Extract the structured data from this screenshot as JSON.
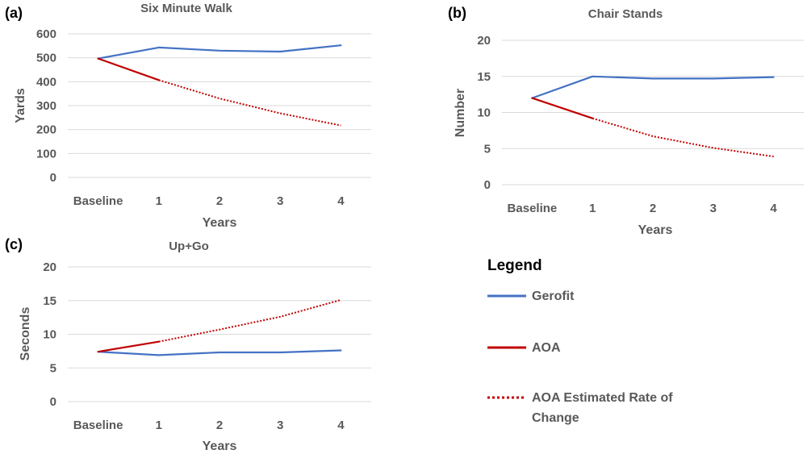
{
  "colors": {
    "gerofit": "#4472c4",
    "aoa": "#c00000"
  },
  "chart_data": [
    {
      "panel": "(a)",
      "type": "line",
      "title": "Six Minute Walk",
      "xlabel": "Years",
      "ylabel": "Yards",
      "categories": [
        "Baseline",
        "1",
        "2",
        "3",
        "4"
      ],
      "ylim": [
        0,
        600
      ],
      "yticks": [
        0,
        100,
        200,
        300,
        400,
        500,
        600
      ],
      "grid": true,
      "series": [
        {
          "name": "Gerofit",
          "values": [
            497,
            543,
            530,
            526,
            552
          ],
          "style": "solid",
          "color": "#4472c4"
        },
        {
          "name": "AOA",
          "values": [
            497,
            407,
            null,
            null,
            null
          ],
          "style": "solid",
          "color": "#c00000"
        },
        {
          "name": "AOA Estimated Rate of Change",
          "values": [
            null,
            407,
            330,
            268,
            217
          ],
          "style": "dotted",
          "color": "#c00000"
        }
      ]
    },
    {
      "panel": "(b)",
      "type": "line",
      "title": "Chair Stands",
      "xlabel": "Years",
      "ylabel": "Number",
      "categories": [
        "Baseline",
        "1",
        "2",
        "3",
        "4"
      ],
      "ylim": [
        0,
        20
      ],
      "yticks": [
        0,
        5,
        10,
        15,
        20
      ],
      "grid": true,
      "series": [
        {
          "name": "Gerofit",
          "values": [
            12,
            15,
            14.7,
            14.7,
            14.9
          ],
          "style": "solid",
          "color": "#4472c4"
        },
        {
          "name": "AOA",
          "values": [
            12,
            9.2,
            null,
            null,
            null
          ],
          "style": "solid",
          "color": "#c00000"
        },
        {
          "name": "AOA Estimated Rate of Change",
          "values": [
            null,
            9.2,
            6.7,
            5.1,
            3.9
          ],
          "style": "dotted",
          "color": "#c00000"
        }
      ]
    },
    {
      "panel": "(c)",
      "type": "line",
      "title": "Up+Go",
      "xlabel": "Years",
      "ylabel": "Seconds",
      "categories": [
        "Baseline",
        "1",
        "2",
        "3",
        "4"
      ],
      "ylim": [
        0,
        20
      ],
      "yticks": [
        0,
        5,
        10,
        15,
        20
      ],
      "grid": true,
      "series": [
        {
          "name": "Gerofit",
          "values": [
            7.4,
            6.9,
            7.3,
            7.3,
            7.6
          ],
          "style": "solid",
          "color": "#4472c4"
        },
        {
          "name": "AOA",
          "values": [
            7.4,
            8.9,
            null,
            null,
            null
          ],
          "style": "solid",
          "color": "#c00000"
        },
        {
          "name": "AOA Estimated Rate of Change",
          "values": [
            null,
            8.9,
            10.7,
            12.6,
            15.1
          ],
          "style": "dotted",
          "color": "#c00000"
        }
      ]
    }
  ],
  "legend": {
    "title": "Legend",
    "entries": [
      {
        "lines": [
          "Gerofit"
        ],
        "style": "solid",
        "color": "#4472c4"
      },
      {
        "lines": [
          "AOA"
        ],
        "style": "solid",
        "color": "#c00000"
      },
      {
        "lines": [
          "AOA Estimated Rate of",
          "Change"
        ],
        "style": "dotted",
        "color": "#c00000"
      }
    ]
  }
}
